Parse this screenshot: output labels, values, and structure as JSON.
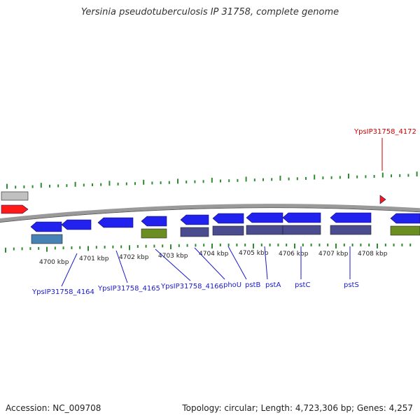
{
  "title": "Yersinia pseudotuberculosis IP 31758, complete genome",
  "accession": "Accession: NC_009708",
  "summary": "Topology: circular; Length: 4,723,306 bp; Genes: 4,257",
  "colors": {
    "backbone": "#8a8a8a",
    "forward": "#2222ee",
    "reverse": "#2222ee",
    "rna_like": "#4682b4",
    "pseudo": "#6b8e23",
    "operon": "#4b4b8f",
    "tick": "#2e8b2e",
    "highlight": "#ff1a1a",
    "label_blue": "#1a1acc",
    "label_red": "#cc0000"
  },
  "scale_labels": [
    "4700 kbp",
    "4701 kbp",
    "4702 kbp",
    "4703 kbp",
    "4704 kbp",
    "4705 kbp",
    "4706 kbp",
    "4707 kbp",
    "4708 kbp"
  ],
  "gene_labels": [
    {
      "text": "YpsIP31758_4164",
      "color": "label_blue"
    },
    {
      "text": "YpsIP31758_4165",
      "color": "label_blue"
    },
    {
      "text": "YpsIP31758_4166",
      "color": "label_blue"
    },
    {
      "text": "phoU",
      "color": "label_blue"
    },
    {
      "text": "pstB",
      "color": "label_blue"
    },
    {
      "text": "pstA",
      "color": "label_blue"
    },
    {
      "text": "pstC",
      "color": "label_blue"
    },
    {
      "text": "pstS",
      "color": "label_blue"
    },
    {
      "text": "YpsIP31758_4172",
      "color": "label_red"
    }
  ]
}
